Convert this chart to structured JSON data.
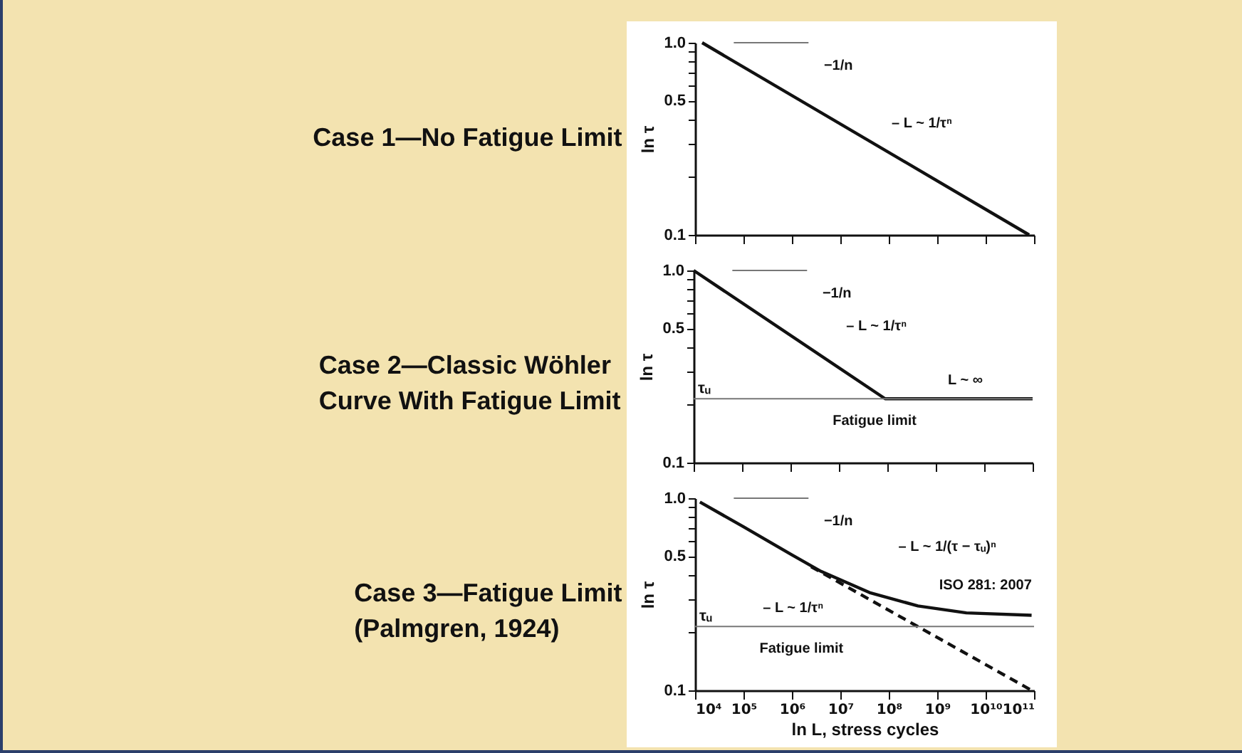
{
  "chart_data": [
    {
      "type": "line",
      "title": "Case 1—No Fatigue Limit",
      "ylabel": "ln τ",
      "log": "xy",
      "grid": false,
      "tick_labels": "y",
      "xlim": [
        10000,
        100000000000
      ],
      "xticks": [
        10000,
        100000,
        1000000,
        10000000,
        100000000,
        1000000000,
        10000000000,
        100000000000
      ],
      "ylim": [
        0.1,
        1.0
      ],
      "yticks": [
        {
          "value": 0.1,
          "label": "0.1"
        },
        {
          "value": 0.2,
          "label": null
        },
        {
          "value": 0.3,
          "label": null
        },
        {
          "value": 0.4,
          "label": null
        },
        {
          "value": 0.5,
          "label": "0.5"
        },
        {
          "value": 0.6,
          "label": null
        },
        {
          "value": 0.7,
          "label": null
        },
        {
          "value": 0.8,
          "label": null
        },
        {
          "value": 0.9,
          "label": null
        },
        {
          "value": 1.0,
          "label": "1.0"
        }
      ],
      "series": [
        {
          "color": "#111111",
          "line_style": "solid",
          "x": [
            14000,
            79000000000
          ],
          "values": [
            1.0,
            0.1
          ]
        },
        {
          "color": "#777777",
          "line_style": "solid",
          "x": [
            63000,
            2200000
          ],
          "values": [
            1.0,
            1.0
          ]
        }
      ],
      "annotations": [
        "−1/n",
        "– L ~ 1/τⁿ"
      ]
    },
    {
      "type": "line",
      "title": "Case 2—Classic Wöhler\nCurve With Fatigue Limit",
      "ylabel": "ln τ",
      "log": "xy",
      "grid": false,
      "tick_labels": "y",
      "xlim": [
        10000,
        100000000000
      ],
      "xticks": [
        10000,
        100000,
        1000000,
        10000000,
        100000000,
        1000000000,
        10000000000,
        100000000000
      ],
      "ylim": [
        0.1,
        1.0
      ],
      "yticks": [
        {
          "value": 0.1,
          "label": "0.1"
        },
        {
          "value": 0.2,
          "label": null
        },
        {
          "value": 0.3,
          "label": null
        },
        {
          "value": 0.4,
          "label": null
        },
        {
          "value": 0.5,
          "label": "0.5"
        },
        {
          "value": 0.6,
          "label": null
        },
        {
          "value": 0.7,
          "label": null
        },
        {
          "value": 0.8,
          "label": null
        },
        {
          "value": 0.9,
          "label": null
        },
        {
          "value": 1.0,
          "label": "1.0"
        }
      ],
      "series": [
        {
          "color": "#111111",
          "line_style": "solid",
          "x": [
            10000,
            90000000,
            100000000000
          ],
          "values": [
            1.0,
            0.215,
            0.215
          ]
        },
        {
          "color": "#777777",
          "line_style": "solid",
          "x": [
            63000,
            2200000
          ],
          "values": [
            1.0,
            1.0
          ]
        }
      ],
      "ref_lines": [
        {
          "axis": "y",
          "value": 0.215,
          "label": "τᵤ",
          "color": "#777777"
        }
      ],
      "annotations": [
        "−1/n",
        "– L ~ 1/τⁿ",
        "L ~ ∞",
        "Fatigue limit"
      ]
    },
    {
      "type": "line",
      "title": "Case 3—Fatigue Limit\n(Palmgren, 1924)",
      "ylabel": "ln τ",
      "xlabel": "ln L, stress cycles",
      "log": "xy",
      "grid": false,
      "xlim": [
        10000,
        100000000000
      ],
      "xticks": [
        {
          "value": 10000,
          "label": "10⁴"
        },
        {
          "value": 100000,
          "label": "10⁵"
        },
        {
          "value": 1000000,
          "label": "10⁶"
        },
        {
          "value": 10000000,
          "label": "10⁷"
        },
        {
          "value": 100000000,
          "label": "10⁸"
        },
        {
          "value": 1000000000,
          "label": "10⁹"
        },
        {
          "value": 10000000000,
          "label": "10¹⁰"
        },
        {
          "value": 100000000000,
          "label": "10¹¹"
        }
      ],
      "ylim": [
        0.1,
        1.0
      ],
      "yticks": [
        {
          "value": 0.1,
          "label": "0.1"
        },
        {
          "value": 0.2,
          "label": null
        },
        {
          "value": 0.3,
          "label": null
        },
        {
          "value": 0.4,
          "label": null
        },
        {
          "value": 0.5,
          "label": "0.5"
        },
        {
          "value": 0.6,
          "label": null
        },
        {
          "value": 0.7,
          "label": null
        },
        {
          "value": 0.8,
          "label": null
        },
        {
          "value": 0.9,
          "label": null
        },
        {
          "value": 1.0,
          "label": "1.0"
        }
      ],
      "series": [
        {
          "color": "#111111",
          "line_style": "solid",
          "x": [
            12600,
            100000,
            1000000,
            4000000,
            40000000,
            400000000,
            4000000000,
            89000000000
          ],
          "values": [
            0.955,
            0.71,
            0.507,
            0.416,
            0.323,
            0.275,
            0.253,
            0.246
          ]
        },
        {
          "color": "#111111",
          "line_style": "dashed",
          "x": [
            2500000,
            89000000000
          ],
          "values": [
            0.44,
            0.1
          ]
        },
        {
          "color": "#777777",
          "line_style": "solid",
          "x": [
            63000,
            2200000
          ],
          "values": [
            1.0,
            1.0
          ]
        }
      ],
      "ref_lines": [
        {
          "axis": "y",
          "value": 0.215,
          "label": "τᵤ",
          "color": "#777777"
        }
      ],
      "annotations": [
        "−1/n",
        "– L ~ 1/(τ − τᵤ)ⁿ",
        "ISO 281: 2007",
        "– L ~ 1/τⁿ",
        "Fatigue limit"
      ]
    }
  ]
}
